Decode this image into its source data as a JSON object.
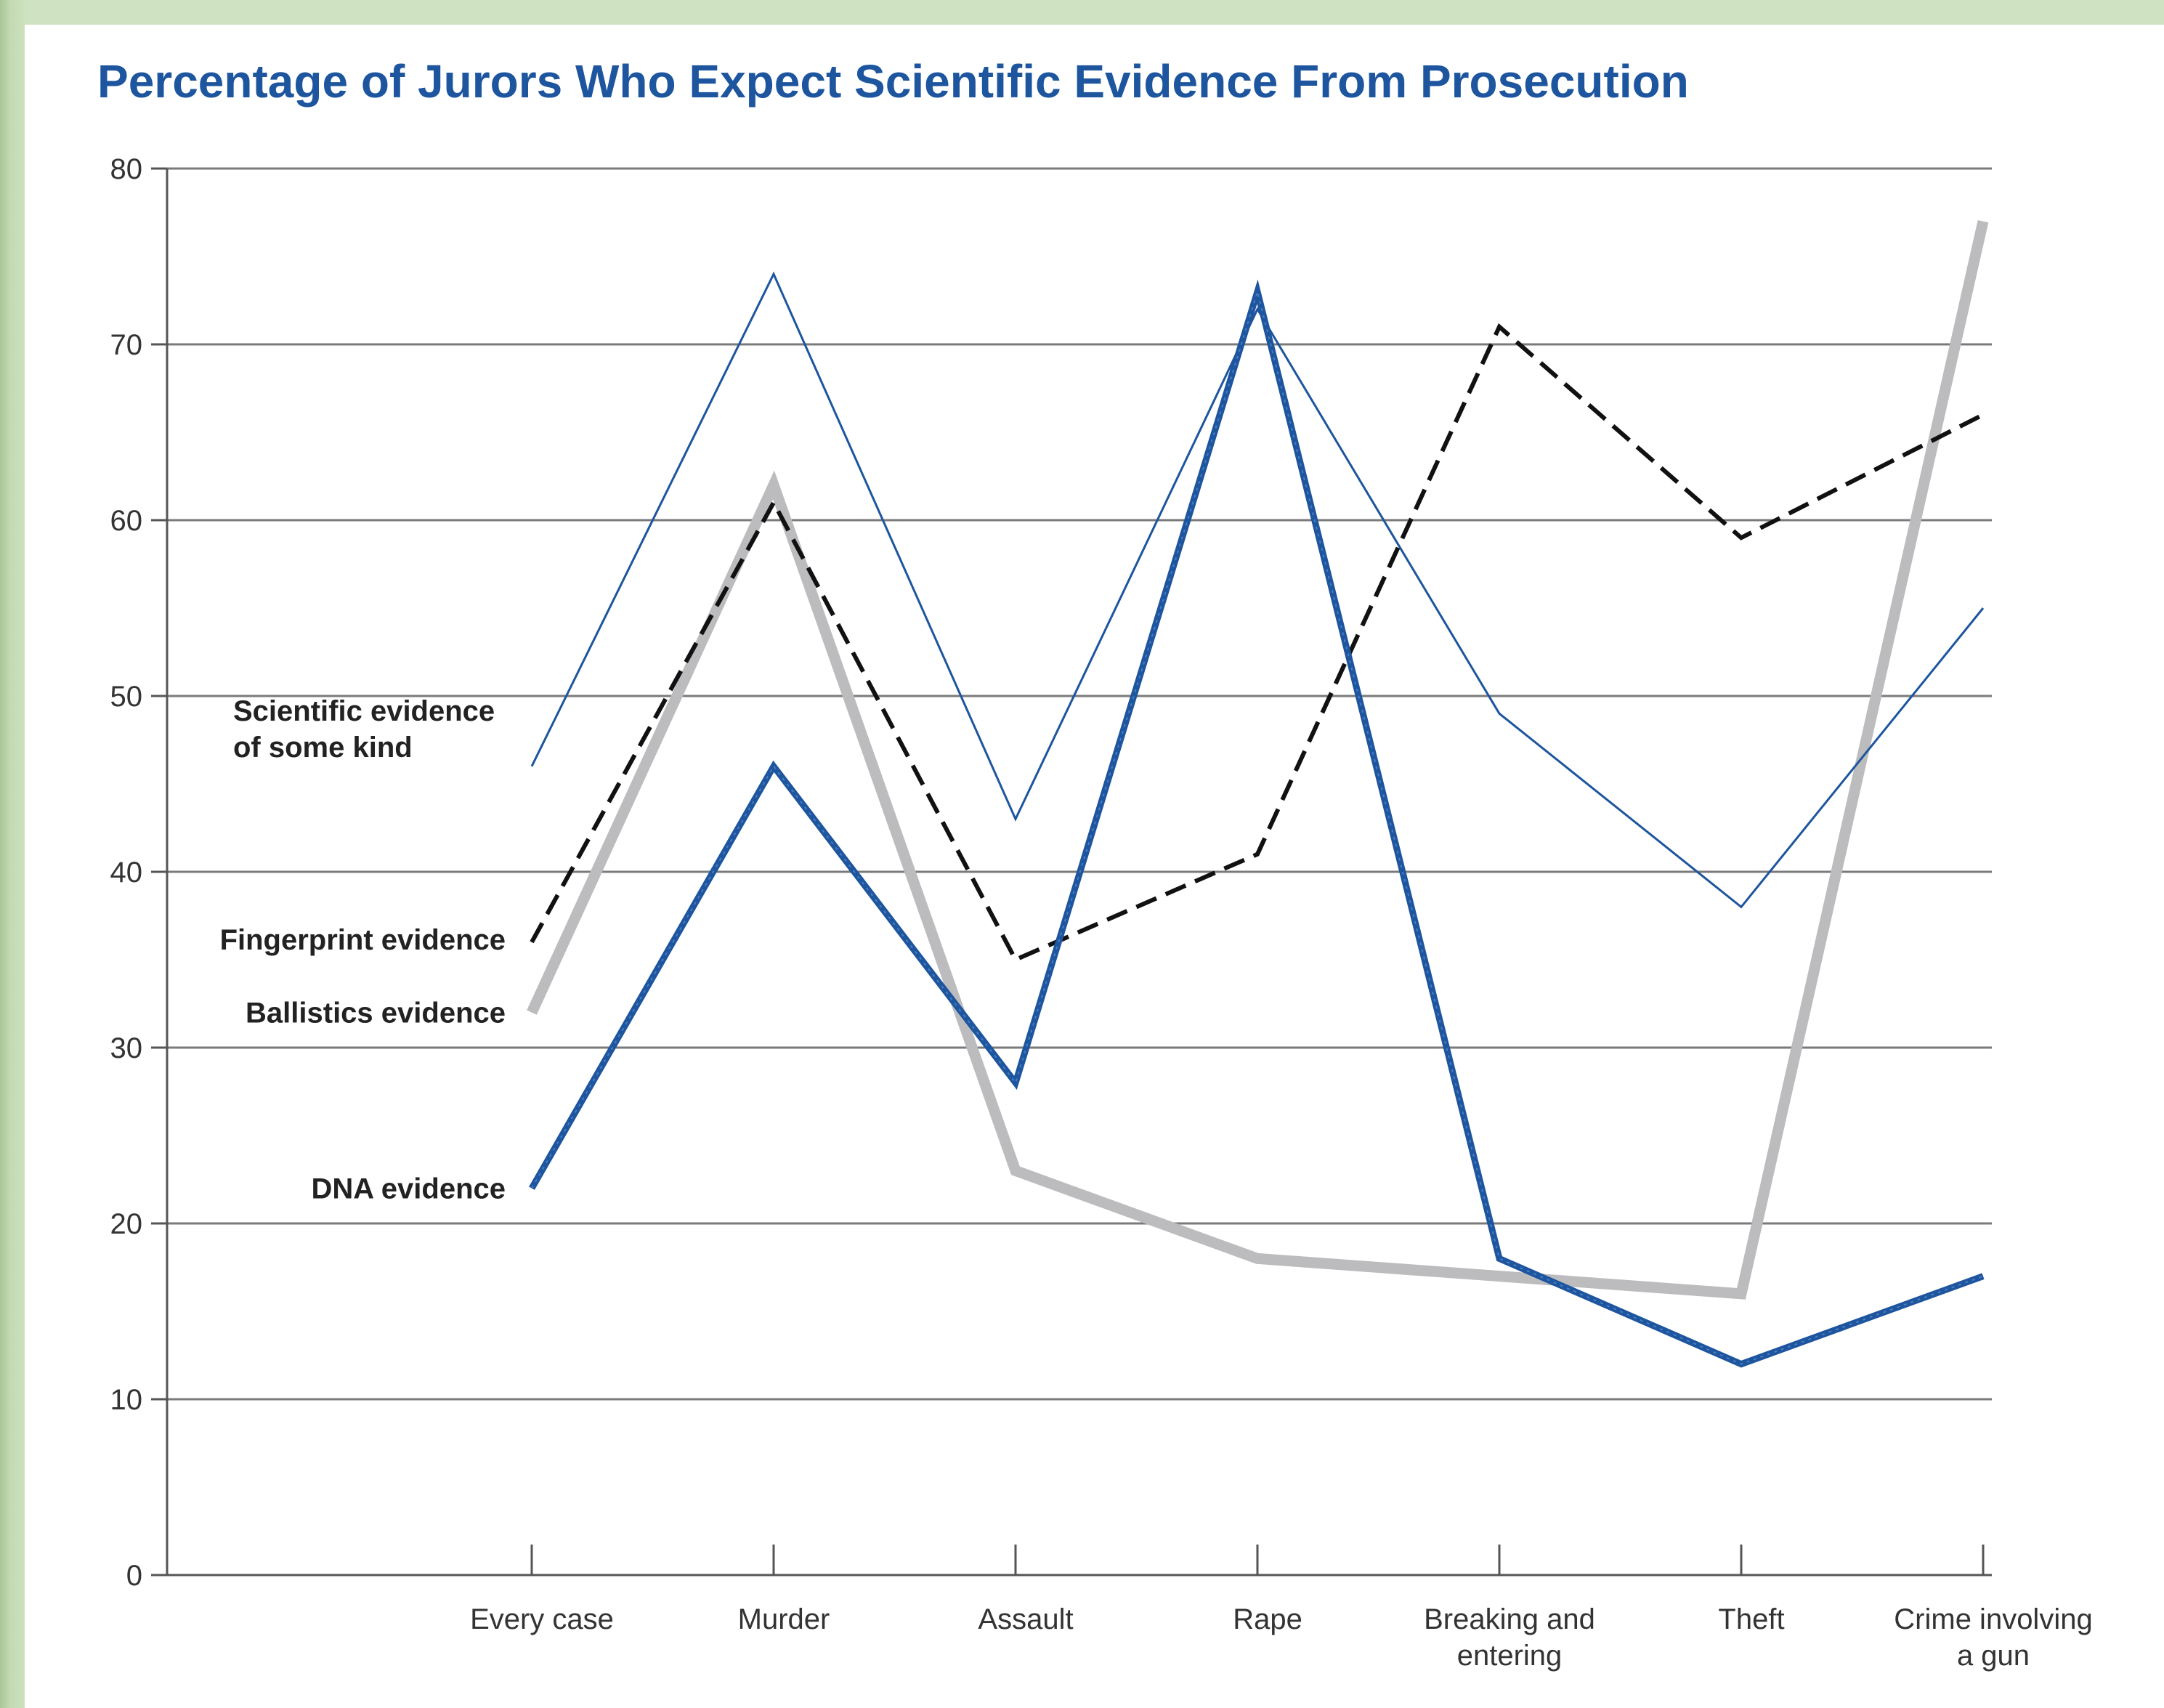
{
  "chart_data": {
    "type": "line",
    "title": "Percentage of Jurors Who Expect Scientific Evidence From Prosecution",
    "xlabel": "",
    "ylabel": "",
    "ylim": [
      0,
      80
    ],
    "yticks": [
      0,
      10,
      20,
      30,
      40,
      50,
      60,
      70,
      80
    ],
    "grid": true,
    "legend": "direct labels at left of each line",
    "categories": [
      [
        "Every case"
      ],
      [
        "Murder"
      ],
      [
        "Assault"
      ],
      [
        "Rape"
      ],
      [
        "Breaking and",
        "entering"
      ],
      [
        "Theft"
      ],
      [
        "Crime involving",
        "a gun"
      ]
    ],
    "series": [
      {
        "name": [
          "Scientific evidence",
          "of some kind"
        ],
        "values": [
          46,
          74,
          43,
          72,
          49,
          38,
          55
        ],
        "color": "#1d559e",
        "style": "thin"
      },
      {
        "name": [
          "Fingerprint evidence"
        ],
        "values": [
          36,
          61,
          35,
          41,
          71,
          59,
          66
        ],
        "color": "#111111",
        "style": "dashed"
      },
      {
        "name": [
          "Ballistics evidence"
        ],
        "values": [
          32,
          62,
          23,
          18,
          17,
          16,
          77
        ],
        "color": "#bcbcbe",
        "style": "thick"
      },
      {
        "name": [
          "DNA evidence"
        ],
        "values": [
          22,
          46,
          28,
          73,
          18,
          12,
          17
        ],
        "color": "#1d559e",
        "style": "bold"
      }
    ]
  }
}
